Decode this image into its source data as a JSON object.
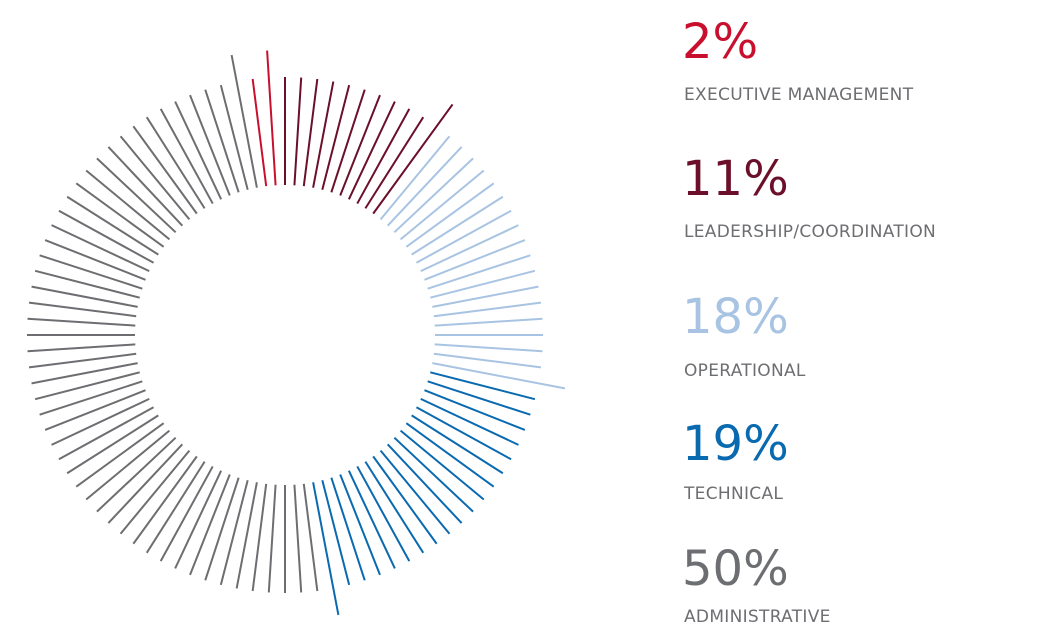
{
  "chart_data": {
    "type": "pie",
    "categories": [
      "EXECUTIVE MANAGEMENT",
      "LEADERSHIP/COORDINATION",
      "OPERATIONAL",
      "TECHNICAL",
      "ADMINISTRATIVE"
    ],
    "values": [
      2,
      11,
      18,
      19,
      50
    ],
    "value_labels": [
      "2%",
      "11%",
      "18%",
      "19%",
      "50%"
    ],
    "colors": [
      "#c8102e",
      "#6b0f2a",
      "#a8c4e2",
      "#0a6ab0",
      "#6d6e71"
    ]
  }
}
